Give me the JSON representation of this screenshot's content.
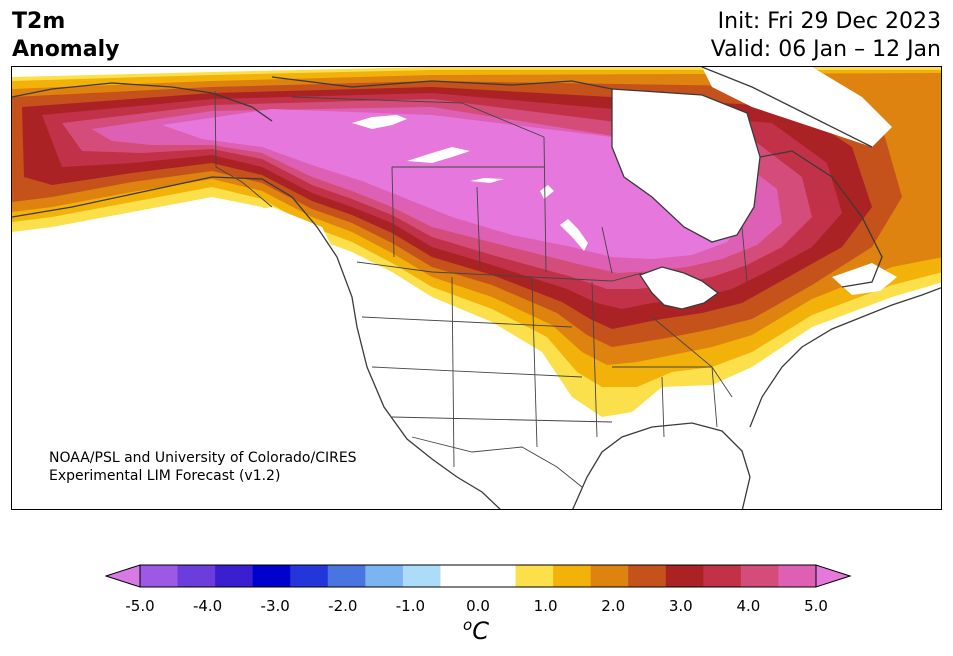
{
  "header": {
    "variable_line1": "T2m",
    "variable_line2": "Anomaly",
    "init_text": "Init: Fri 29 Dec 2023",
    "valid_text": "Valid: 06 Jan – 12 Jan"
  },
  "credit": {
    "line1": "NOAA/PSL and University of Colorado/CIRES",
    "line2": "Experimental LIM Forecast (v1.2)"
  },
  "colorbar": {
    "units_base": "o",
    "units_letter": "C",
    "tick_labels": [
      "-5.0",
      "-4.0",
      "-3.0",
      "-2.0",
      "-1.0",
      "0.0",
      "1.0",
      "2.0",
      "3.0",
      "4.0",
      "5.0"
    ],
    "min": -5.0,
    "max": 5.0,
    "extend": "both",
    "colors": [
      "#9b59e6",
      "#6a3ddc",
      "#3a1fd0",
      "#0000cc",
      "#2436d9",
      "#4a74e0",
      "#7bb4f0",
      "#addcf9",
      "#ffffff",
      "#ffffff",
      "#fbe04c",
      "#f2b20a",
      "#de8210",
      "#c4521a",
      "#ab2224",
      "#c13148",
      "#d44d7a",
      "#de60b4"
    ],
    "under_color": "#d77ae6",
    "over_color": "#e677dc"
  },
  "palette": {
    "anom_0": "#ffffff",
    "anom_0_5": "#fbe04c",
    "anom_1_0": "#f2b20a",
    "anom_1_5": "#de8210",
    "anom_2_0": "#c4521a",
    "anom_2_5": "#ab2224",
    "anom_3_0": "#c13148",
    "anom_3_5": "#d44d7a",
    "anom_4_0": "#de60b4",
    "anom_5_0": "#e677dc",
    "coastline": "#3a3a3a",
    "border": "#444444"
  }
}
